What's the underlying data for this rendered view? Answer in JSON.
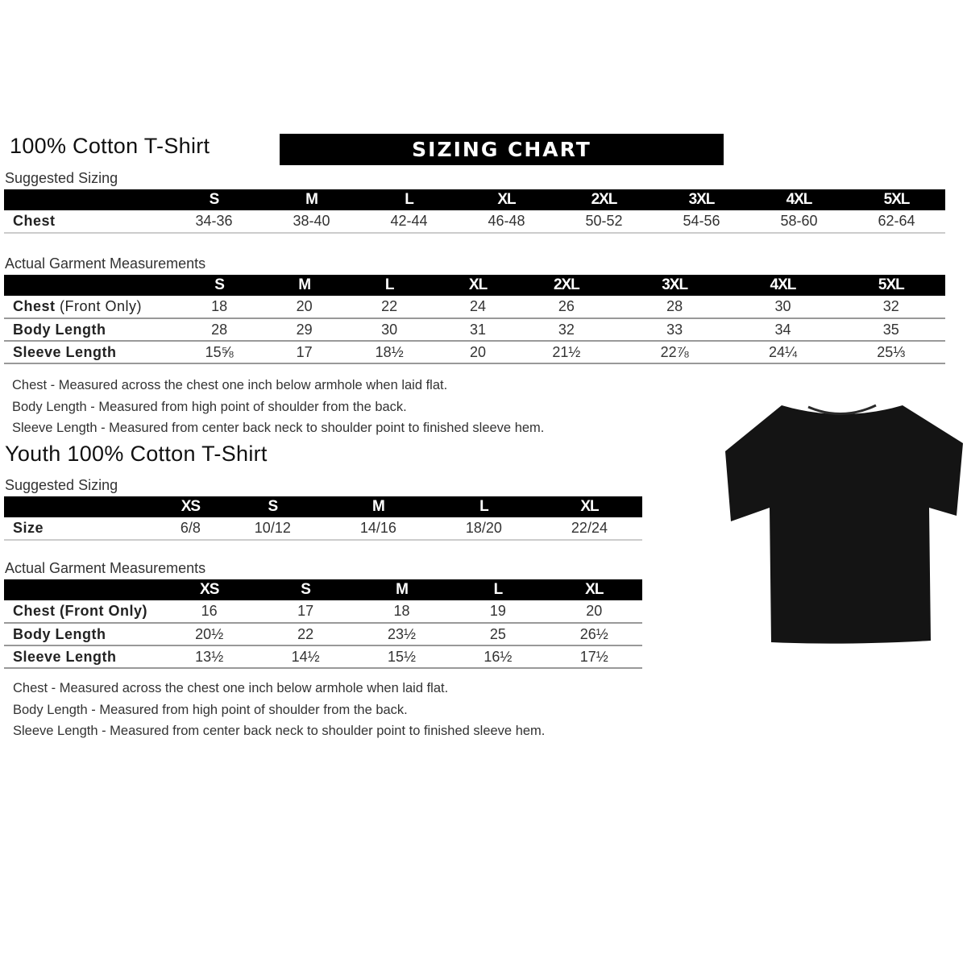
{
  "adult": {
    "title": "100% Cotton T-Shirt",
    "banner": "SIZING CHART",
    "suggested": {
      "label": "Suggested Sizing",
      "sizes": [
        "S",
        "M",
        "L",
        "XL",
        "2XL",
        "3XL",
        "4XL",
        "5XL"
      ],
      "rows": [
        {
          "label": "Chest",
          "values": [
            "34-36",
            "38-40",
            "42-44",
            "46-48",
            "50-52",
            "54-56",
            "58-60",
            "62-64"
          ]
        }
      ]
    },
    "actual": {
      "label": "Actual Garment Measurements",
      "sizes": [
        "S",
        "M",
        "L",
        "XL",
        "2XL",
        "3XL",
        "4XL",
        "5XL"
      ],
      "rows": [
        {
          "label": "Chest",
          "label_suffix": " (Front Only)",
          "values": [
            "18",
            "20",
            "22",
            "24",
            "26",
            "28",
            "30",
            "32"
          ]
        },
        {
          "label": "Body Length",
          "values": [
            "28",
            "29",
            "30",
            "31",
            "32",
            "33",
            "34",
            "35"
          ]
        },
        {
          "label": "Sleeve Length",
          "values": [
            "15⅝",
            "17",
            "18½",
            "20",
            "21½",
            "22⅞",
            "24¼",
            "25⅓"
          ]
        }
      ]
    },
    "notes": [
      "Chest - Measured across the chest one inch below armhole when laid flat.",
      "Body Length - Measured from high point of shoulder from the back.",
      "Sleeve Length - Measured from center back neck to shoulder point to finished sleeve hem."
    ]
  },
  "youth": {
    "title": "Youth 100% Cotton T-Shirt",
    "suggested": {
      "label": "Suggested Sizing",
      "sizes": [
        "XS",
        "S",
        "M",
        "L",
        "XL"
      ],
      "rows": [
        {
          "label": "Size",
          "values": [
            "6/8",
            "10/12",
            "14/16",
            "18/20",
            "22/24"
          ]
        }
      ]
    },
    "actual": {
      "label": "Actual Garment Measurements",
      "sizes": [
        "XS",
        "S",
        "M",
        "L",
        "XL"
      ],
      "rows": [
        {
          "label": "Chest (Front Only)",
          "values": [
            "16",
            "17",
            "18",
            "19",
            "20"
          ]
        },
        {
          "label": "Body Length",
          "values": [
            "20½",
            "22",
            "23½",
            "25",
            "26½"
          ]
        },
        {
          "label": "Sleeve Length",
          "values": [
            "13½",
            "14½",
            "15½",
            "16½",
            "17½"
          ]
        }
      ]
    },
    "notes": [
      "Chest - Measured across the chest one inch below armhole when laid flat.",
      "Body Length - Measured from high point of shoulder from the back.",
      "Sleeve Length - Measured from center back neck to shoulder point to finished sleeve hem."
    ]
  },
  "image": {
    "icon": "tshirt-icon",
    "color": "#141414"
  }
}
